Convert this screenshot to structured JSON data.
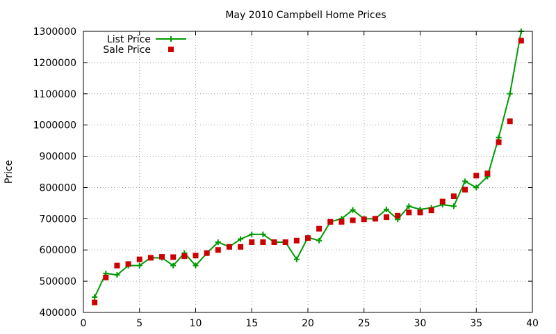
{
  "chart_data": {
    "type": "line",
    "title": "May 2010 Campbell Home Prices",
    "xlabel": "",
    "ylabel": "Price",
    "xlim": [
      0,
      40
    ],
    "ylim": [
      400000,
      1300000
    ],
    "xticks": [
      0,
      5,
      10,
      15,
      20,
      25,
      30,
      35,
      40
    ],
    "yticks": [
      400000,
      500000,
      600000,
      700000,
      800000,
      900000,
      1000000,
      1100000,
      1200000,
      1300000
    ],
    "grid": true,
    "legend_position": "top-left",
    "x": [
      1,
      2,
      3,
      4,
      5,
      6,
      7,
      8,
      9,
      10,
      11,
      12,
      13,
      14,
      15,
      16,
      17,
      18,
      19,
      20,
      21,
      22,
      23,
      24,
      25,
      26,
      27,
      28,
      29,
      30,
      31,
      32,
      33,
      34,
      35,
      36,
      37,
      38,
      39
    ],
    "series": [
      {
        "name": "List Price",
        "style": "linespoints",
        "marker": "plus",
        "color": "#009900",
        "values": [
          449000,
          525000,
          520000,
          550000,
          550000,
          575000,
          575000,
          550000,
          590000,
          550000,
          590000,
          625000,
          610000,
          635000,
          650000,
          650000,
          625000,
          625000,
          570000,
          640000,
          630000,
          690000,
          700000,
          728000,
          700000,
          700000,
          730000,
          698000,
          740000,
          730000,
          735000,
          745000,
          740000,
          820000,
          800000,
          835000,
          960000,
          1100000,
          1300000
        ]
      },
      {
        "name": "Sale Price",
        "style": "points",
        "marker": "square",
        "color": "#cc0000",
        "values": [
          432000,
          512000,
          550000,
          555000,
          570000,
          575000,
          578000,
          577000,
          580000,
          582000,
          590000,
          600000,
          610000,
          610000,
          625000,
          625000,
          625000,
          625000,
          630000,
          638000,
          668000,
          690000,
          690000,
          695000,
          698000,
          700000,
          705000,
          710000,
          720000,
          720000,
          727000,
          755000,
          772000,
          793000,
          838000,
          845000,
          945000,
          1012000,
          1270000
        ]
      }
    ]
  }
}
